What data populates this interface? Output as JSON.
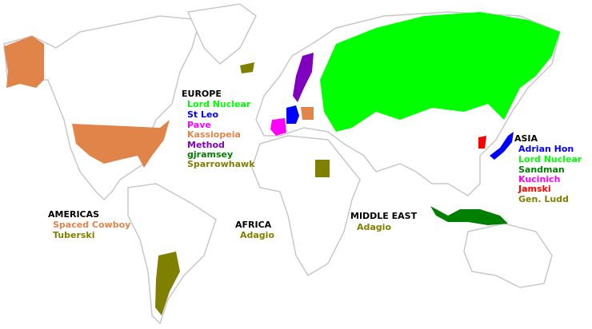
{
  "colors": {
    "green": "#00ff00",
    "blue": "#0000ff",
    "magenta": "#ff00ff",
    "orange": "#e0844a",
    "purple": "#8000c0",
    "dark_green": "#008000",
    "olive": "#808000",
    "red": "#ff0000",
    "border": "#c8c8c8"
  },
  "regions": {
    "europe": {
      "title": "EUROPE",
      "players": [
        {
          "name": "Lord Nuclear",
          "color": "#00ff00"
        },
        {
          "name": "St Leo",
          "color": "#0000ff"
        },
        {
          "name": "Pave",
          "color": "#ff00ff"
        },
        {
          "name": "Kassiopeia",
          "color": "#e0844a"
        },
        {
          "name": "Method",
          "color": "#8000c0"
        },
        {
          "name": "gjramsey",
          "color": "#008000"
        },
        {
          "name": "Sparrowhawk",
          "color": "#808000"
        }
      ]
    },
    "asia": {
      "title": "ASIA",
      "players": [
        {
          "name": "Adrian Hon",
          "color": "#0000ff"
        },
        {
          "name": "Lord Nuclear",
          "color": "#00ff00"
        },
        {
          "name": "Sandman",
          "color": "#008000"
        },
        {
          "name": "Kucinich",
          "color": "#ff00ff"
        },
        {
          "name": "Jamski",
          "color": "#ff0000"
        },
        {
          "name": "Gen. Ludd",
          "color": "#808000"
        }
      ]
    },
    "americas": {
      "title": "AMERICAS",
      "players": [
        {
          "name": "Spaced Cowboy",
          "color": "#e0844a"
        },
        {
          "name": "Tuberski",
          "color": "#808000"
        }
      ]
    },
    "africa": {
      "title": "AFRICA",
      "players": [
        {
          "name": "Adagio",
          "color": "#808000"
        }
      ]
    },
    "middle_east": {
      "title": "MIDDLE EAST",
      "players": [
        {
          "name": "Adagio",
          "color": "#808000"
        }
      ]
    }
  }
}
